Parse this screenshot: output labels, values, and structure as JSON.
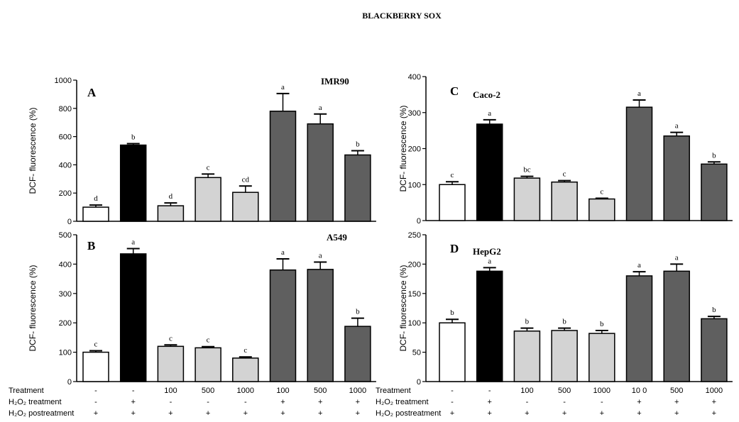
{
  "title": "BLACKBERRY SOX",
  "row_labels": {
    "left": [
      "Treatment",
      "H₂O₂ treatment",
      "H₂O₂ postreatment"
    ],
    "right": [
      "Treatment",
      "H₂O₂ treatment",
      "H₂O₂ postreatment"
    ]
  },
  "conditions": {
    "treatment_left": [
      "-",
      "-",
      "100",
      "500",
      "1000",
      "100",
      "500",
      "1000"
    ],
    "treatment_right": [
      "-",
      "-",
      "100",
      "500",
      "1000",
      "10 0",
      "500",
      "1000"
    ],
    "h2o2_treatment": [
      "-",
      "+",
      "-",
      "-",
      "-",
      "+",
      "+",
      "+"
    ],
    "h2o2_postreatment": [
      "+",
      "+",
      "+",
      "+",
      "+",
      "+",
      "+",
      "+"
    ]
  },
  "colors": {
    "control": "#ffffff",
    "h2o2": "#000000",
    "extract": "#d3d3d3",
    "extract_h2o2": "#5f5f5f"
  },
  "chart_data": [
    {
      "type": "bar",
      "panel": "A",
      "cell_line": "IMR90",
      "ylabel": "DCF- fluorescence (%)",
      "ylim": [
        0,
        1000
      ],
      "yticks": [
        0,
        200,
        400,
        600,
        800,
        1000
      ],
      "values": [
        100,
        540,
        110,
        310,
        205,
        780,
        690,
        470
      ],
      "errors": [
        15,
        10,
        20,
        25,
        45,
        125,
        70,
        30
      ],
      "letters": [
        "d",
        "b",
        "d",
        "c",
        "cd",
        "a",
        "a",
        "b"
      ]
    },
    {
      "type": "bar",
      "panel": "B",
      "cell_line": "A549",
      "ylabel": "DCF- fluorescence (%)",
      "ylim": [
        0,
        500
      ],
      "yticks": [
        0,
        100,
        200,
        300,
        400,
        500
      ],
      "values": [
        100,
        435,
        120,
        115,
        80,
        380,
        382,
        188
      ],
      "errors": [
        5,
        18,
        5,
        4,
        4,
        38,
        25,
        28
      ],
      "letters": [
        "c",
        "a",
        "c",
        "c",
        "c",
        "a",
        "a",
        "b"
      ]
    },
    {
      "type": "bar",
      "panel": "C",
      "cell_line": "Caco-2",
      "ylabel": "DCF- fluorescence (%)",
      "ylim": [
        0,
        400
      ],
      "yticks": [
        0,
        100,
        200,
        300,
        400
      ],
      "values": [
        100,
        268,
        118,
        107,
        60,
        315,
        235,
        157
      ],
      "errors": [
        8,
        12,
        5,
        4,
        2,
        20,
        10,
        6
      ],
      "letters": [
        "c",
        "a",
        "bc",
        "c",
        "c",
        "a",
        "a",
        "b"
      ]
    },
    {
      "type": "bar",
      "panel": "D",
      "cell_line": "HepG2",
      "ylabel": "DCF- fluorescence (%)",
      "ylim": [
        0,
        250
      ],
      "yticks": [
        0,
        50,
        100,
        150,
        200,
        250
      ],
      "values": [
        100,
        188,
        86,
        87,
        82,
        180,
        188,
        107
      ],
      "errors": [
        6,
        6,
        5,
        4,
        5,
        7,
        12,
        4
      ],
      "letters": [
        "b",
        "a",
        "b",
        "b",
        "b",
        "a",
        "a",
        "b"
      ]
    }
  ]
}
